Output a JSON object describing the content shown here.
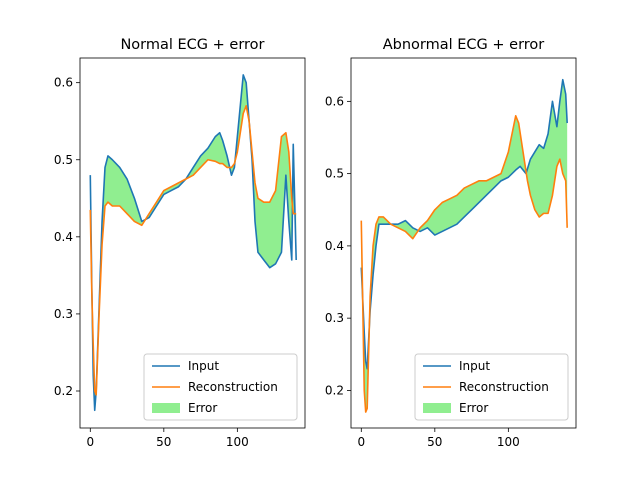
{
  "chart_data": [
    {
      "type": "line",
      "title": "Normal ECG + error",
      "xlabel": "",
      "ylabel": "",
      "xlim": [
        -7,
        146
      ],
      "ylim": [
        0.152,
        0.632
      ],
      "xticks": [
        0,
        50,
        100
      ],
      "yticks": [
        0.2,
        0.3,
        0.4,
        0.5,
        0.6
      ],
      "grid": false,
      "legend_position": "lower-right",
      "legend": [
        "Input",
        "Reconstruction",
        "Error"
      ],
      "series": [
        {
          "name": "Input",
          "color": "#1f77b4",
          "points": [
            [
              0,
              0.48
            ],
            [
              1,
              0.34
            ],
            [
              2,
              0.22
            ],
            [
              3,
              0.175
            ],
            [
              4,
              0.2
            ],
            [
              6,
              0.31
            ],
            [
              8,
              0.42
            ],
            [
              10,
              0.49
            ],
            [
              12,
              0.505
            ],
            [
              15,
              0.5
            ],
            [
              20,
              0.49
            ],
            [
              25,
              0.475
            ],
            [
              30,
              0.45
            ],
            [
              35,
              0.42
            ],
            [
              40,
              0.425
            ],
            [
              45,
              0.44
            ],
            [
              50,
              0.455
            ],
            [
              55,
              0.46
            ],
            [
              60,
              0.465
            ],
            [
              65,
              0.475
            ],
            [
              70,
              0.49
            ],
            [
              75,
              0.505
            ],
            [
              80,
              0.515
            ],
            [
              85,
              0.53
            ],
            [
              88,
              0.535
            ],
            [
              90,
              0.525
            ],
            [
              93,
              0.505
            ],
            [
              96,
              0.48
            ],
            [
              98,
              0.49
            ],
            [
              100,
              0.53
            ],
            [
              102,
              0.57
            ],
            [
              104,
              0.61
            ],
            [
              106,
              0.6
            ],
            [
              108,
              0.55
            ],
            [
              110,
              0.5
            ],
            [
              112,
              0.42
            ],
            [
              114,
              0.38
            ],
            [
              118,
              0.37
            ],
            [
              122,
              0.36
            ],
            [
              126,
              0.365
            ],
            [
              130,
              0.38
            ],
            [
              133,
              0.48
            ],
            [
              135,
              0.42
            ],
            [
              137,
              0.37
            ],
            [
              138,
              0.52
            ],
            [
              140,
              0.37
            ]
          ]
        },
        {
          "name": "Reconstruction",
          "color": "#ff7f0e",
          "points": [
            [
              0,
              0.435
            ],
            [
              1,
              0.33
            ],
            [
              2,
              0.26
            ],
            [
              3,
              0.2
            ],
            [
              4,
              0.195
            ],
            [
              6,
              0.3
            ],
            [
              8,
              0.39
            ],
            [
              10,
              0.44
            ],
            [
              12,
              0.445
            ],
            [
              15,
              0.44
            ],
            [
              20,
              0.44
            ],
            [
              25,
              0.43
            ],
            [
              30,
              0.42
            ],
            [
              35,
              0.415
            ],
            [
              40,
              0.43
            ],
            [
              45,
              0.445
            ],
            [
              50,
              0.46
            ],
            [
              55,
              0.465
            ],
            [
              60,
              0.47
            ],
            [
              65,
              0.475
            ],
            [
              70,
              0.48
            ],
            [
              75,
              0.49
            ],
            [
              80,
              0.5
            ],
            [
              85,
              0.498
            ],
            [
              88,
              0.495
            ],
            [
              90,
              0.495
            ],
            [
              93,
              0.49
            ],
            [
              96,
              0.49
            ],
            [
              98,
              0.495
            ],
            [
              100,
              0.51
            ],
            [
              102,
              0.535
            ],
            [
              104,
              0.56
            ],
            [
              106,
              0.57
            ],
            [
              108,
              0.55
            ],
            [
              110,
              0.51
            ],
            [
              112,
              0.47
            ],
            [
              114,
              0.45
            ],
            [
              118,
              0.445
            ],
            [
              122,
              0.445
            ],
            [
              126,
              0.46
            ],
            [
              130,
              0.53
            ],
            [
              133,
              0.535
            ],
            [
              135,
              0.51
            ],
            [
              137,
              0.45
            ],
            [
              138,
              0.43
            ],
            [
              140,
              0.43
            ]
          ]
        }
      ]
    },
    {
      "type": "line",
      "title": "Abnormal ECG + error",
      "xlabel": "",
      "ylabel": "",
      "xlim": [
        -7,
        146
      ],
      "ylim": [
        0.148,
        0.66
      ],
      "xticks": [
        0,
        50,
        100
      ],
      "yticks": [
        0.2,
        0.3,
        0.4,
        0.5,
        0.6
      ],
      "grid": false,
      "legend_position": "lower-right",
      "legend": [
        "Input",
        "Reconstruction",
        "Error"
      ],
      "series": [
        {
          "name": "Input",
          "color": "#1f77b4",
          "points": [
            [
              0,
              0.37
            ],
            [
              2,
              0.28
            ],
            [
              3,
              0.24
            ],
            [
              4,
              0.23
            ],
            [
              6,
              0.31
            ],
            [
              8,
              0.36
            ],
            [
              10,
              0.4
            ],
            [
              12,
              0.43
            ],
            [
              15,
              0.43
            ],
            [
              20,
              0.43
            ],
            [
              25,
              0.43
            ],
            [
              30,
              0.435
            ],
            [
              35,
              0.425
            ],
            [
              40,
              0.42
            ],
            [
              45,
              0.425
            ],
            [
              50,
              0.415
            ],
            [
              55,
              0.42
            ],
            [
              60,
              0.425
            ],
            [
              65,
              0.43
            ],
            [
              70,
              0.44
            ],
            [
              75,
              0.45
            ],
            [
              80,
              0.46
            ],
            [
              85,
              0.47
            ],
            [
              90,
              0.48
            ],
            [
              95,
              0.49
            ],
            [
              100,
              0.495
            ],
            [
              105,
              0.505
            ],
            [
              108,
              0.51
            ],
            [
              110,
              0.505
            ],
            [
              112,
              0.5
            ],
            [
              115,
              0.52
            ],
            [
              118,
              0.53
            ],
            [
              121,
              0.54
            ],
            [
              124,
              0.535
            ],
            [
              127,
              0.555
            ],
            [
              130,
              0.6
            ],
            [
              133,
              0.565
            ],
            [
              135,
              0.6
            ],
            [
              137,
              0.63
            ],
            [
              139,
              0.61
            ],
            [
              140,
              0.57
            ]
          ]
        },
        {
          "name": "Reconstruction",
          "color": "#ff7f0e",
          "points": [
            [
              0,
              0.435
            ],
            [
              2,
              0.2
            ],
            [
              3,
              0.17
            ],
            [
              4,
              0.175
            ],
            [
              6,
              0.33
            ],
            [
              8,
              0.4
            ],
            [
              10,
              0.43
            ],
            [
              12,
              0.44
            ],
            [
              15,
              0.44
            ],
            [
              20,
              0.43
            ],
            [
              25,
              0.425
            ],
            [
              30,
              0.42
            ],
            [
              35,
              0.41
            ],
            [
              40,
              0.425
            ],
            [
              45,
              0.435
            ],
            [
              50,
              0.45
            ],
            [
              55,
              0.46
            ],
            [
              60,
              0.465
            ],
            [
              65,
              0.47
            ],
            [
              70,
              0.48
            ],
            [
              75,
              0.485
            ],
            [
              80,
              0.49
            ],
            [
              85,
              0.49
            ],
            [
              90,
              0.495
            ],
            [
              95,
              0.5
            ],
            [
              100,
              0.53
            ],
            [
              103,
              0.56
            ],
            [
              105,
              0.58
            ],
            [
              107,
              0.57
            ],
            [
              110,
              0.53
            ],
            [
              113,
              0.49
            ],
            [
              115,
              0.47
            ],
            [
              118,
              0.45
            ],
            [
              121,
              0.44
            ],
            [
              124,
              0.445
            ],
            [
              127,
              0.445
            ],
            [
              130,
              0.47
            ],
            [
              133,
              0.51
            ],
            [
              135,
              0.52
            ],
            [
              137,
              0.5
            ],
            [
              139,
              0.49
            ],
            [
              140,
              0.425
            ]
          ]
        }
      ]
    }
  ],
  "colors": {
    "input": "#1f77b4",
    "reconstruction": "#ff7f0e",
    "error_fill": "#90ee90"
  }
}
